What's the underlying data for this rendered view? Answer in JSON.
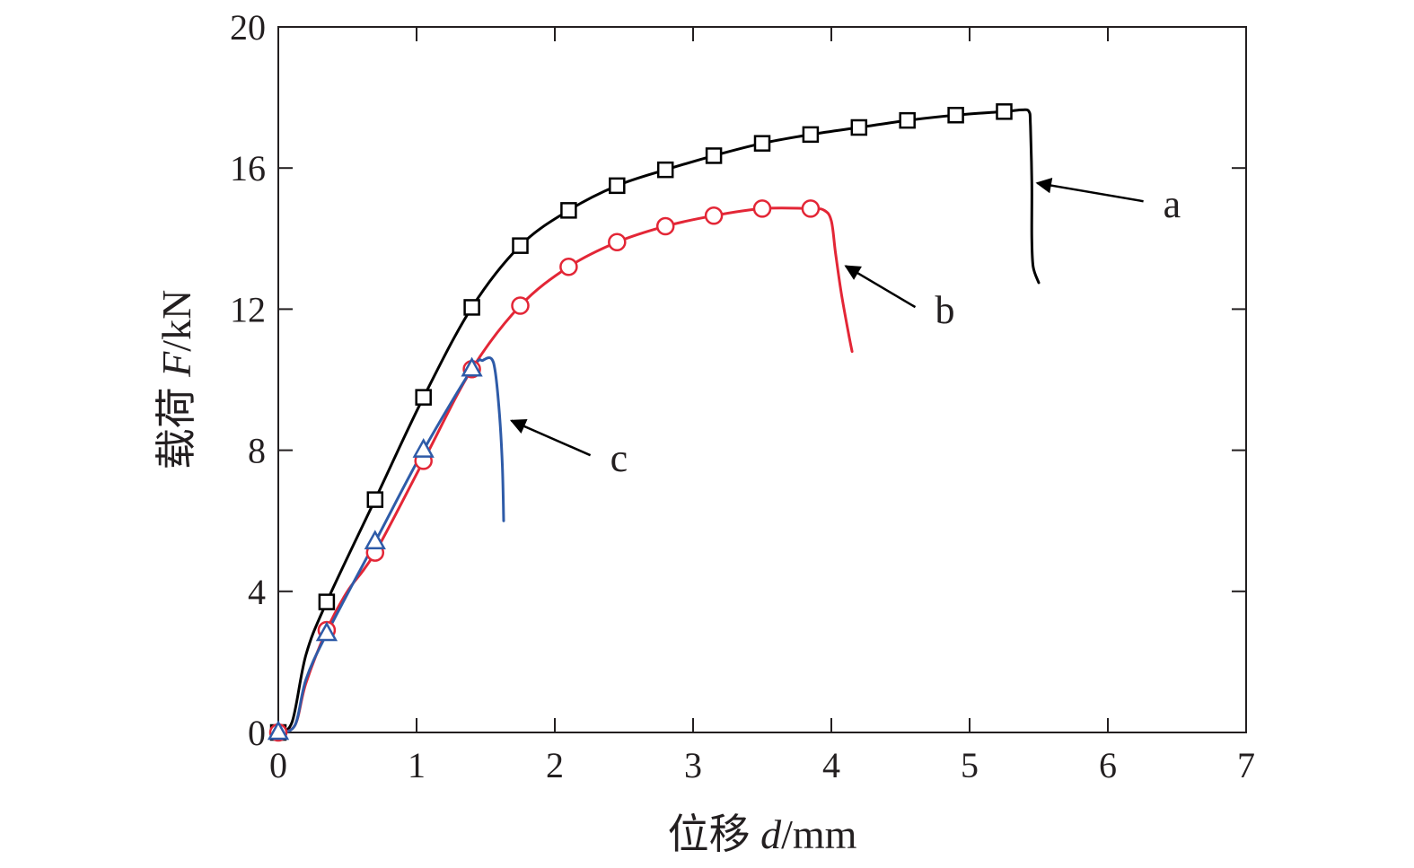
{
  "chart_data": {
    "type": "line",
    "title": "",
    "xlabel": {
      "prefix": "位移 ",
      "var": "d",
      "unit": "/mm"
    },
    "ylabel": {
      "prefix": "载荷 ",
      "var": "F",
      "unit": "/kN"
    },
    "xlim": [
      0,
      7
    ],
    "ylim": [
      0,
      20
    ],
    "xticks": [
      0,
      1,
      2,
      3,
      4,
      5,
      6,
      7
    ],
    "yticks": [
      0,
      4,
      8,
      12,
      16,
      20
    ],
    "grid": false,
    "series": [
      {
        "name": "a",
        "color": "#000000",
        "marker": "square",
        "points": [
          [
            0,
            0
          ],
          [
            0.1,
            0.3
          ],
          [
            0.2,
            2.2
          ],
          [
            0.35,
            3.7
          ],
          [
            0.7,
            6.6
          ],
          [
            1.05,
            9.5
          ],
          [
            1.4,
            12.05
          ],
          [
            1.75,
            13.8
          ],
          [
            2.1,
            14.8
          ],
          [
            2.45,
            15.5
          ],
          [
            2.8,
            15.95
          ],
          [
            3.15,
            16.35
          ],
          [
            3.5,
            16.7
          ],
          [
            3.85,
            16.95
          ],
          [
            4.2,
            17.15
          ],
          [
            4.55,
            17.35
          ],
          [
            4.9,
            17.5
          ],
          [
            5.25,
            17.6
          ],
          [
            5.38,
            17.65
          ],
          [
            5.43,
            17.6
          ],
          [
            5.44,
            17.2
          ],
          [
            5.45,
            15.6
          ],
          [
            5.45,
            14.0
          ],
          [
            5.46,
            13.2
          ],
          [
            5.5,
            12.75
          ]
        ],
        "markers": [
          [
            0,
            0
          ],
          [
            0.35,
            3.7
          ],
          [
            0.7,
            6.6
          ],
          [
            1.05,
            9.5
          ],
          [
            1.4,
            12.05
          ],
          [
            1.75,
            13.8
          ],
          [
            2.1,
            14.8
          ],
          [
            2.45,
            15.5
          ],
          [
            2.8,
            15.95
          ],
          [
            3.15,
            16.35
          ],
          [
            3.5,
            16.7
          ],
          [
            3.85,
            16.95
          ],
          [
            4.2,
            17.15
          ],
          [
            4.55,
            17.35
          ],
          [
            4.9,
            17.5
          ],
          [
            5.25,
            17.6
          ]
        ]
      },
      {
        "name": "b",
        "color": "#e32636",
        "marker": "circle",
        "points": [
          [
            0,
            0
          ],
          [
            0.12,
            0.2
          ],
          [
            0.2,
            1.4
          ],
          [
            0.35,
            2.9
          ],
          [
            0.5,
            4.0
          ],
          [
            0.7,
            5.1
          ],
          [
            1.05,
            7.7
          ],
          [
            1.4,
            10.3
          ],
          [
            1.75,
            12.1
          ],
          [
            2.1,
            13.2
          ],
          [
            2.45,
            13.9
          ],
          [
            2.8,
            14.35
          ],
          [
            3.15,
            14.65
          ],
          [
            3.5,
            14.85
          ],
          [
            3.85,
            14.85
          ],
          [
            3.95,
            14.8
          ],
          [
            4.0,
            14.5
          ],
          [
            4.03,
            13.6
          ],
          [
            4.07,
            12.5
          ],
          [
            4.12,
            11.4
          ],
          [
            4.15,
            10.8
          ]
        ],
        "markers": [
          [
            0,
            0
          ],
          [
            0.35,
            2.9
          ],
          [
            0.7,
            5.1
          ],
          [
            1.05,
            7.7
          ],
          [
            1.4,
            10.3
          ],
          [
            1.75,
            12.1
          ],
          [
            2.1,
            13.2
          ],
          [
            2.45,
            13.9
          ],
          [
            2.8,
            14.35
          ],
          [
            3.15,
            14.65
          ],
          [
            3.5,
            14.85
          ],
          [
            3.85,
            14.85
          ]
        ]
      },
      {
        "name": "c",
        "color": "#2e5ba8",
        "marker": "triangle",
        "points": [
          [
            0,
            0
          ],
          [
            0.12,
            0.2
          ],
          [
            0.2,
            1.5
          ],
          [
            0.35,
            2.8
          ],
          [
            0.7,
            5.4
          ],
          [
            1.05,
            8.0
          ],
          [
            1.4,
            10.3
          ],
          [
            1.48,
            10.55
          ],
          [
            1.54,
            10.6
          ],
          [
            1.57,
            10.2
          ],
          [
            1.6,
            9.0
          ],
          [
            1.62,
            7.6
          ],
          [
            1.63,
            6.0
          ]
        ],
        "markers": [
          [
            0,
            0
          ],
          [
            0.35,
            2.8
          ],
          [
            0.7,
            5.4
          ],
          [
            1.05,
            8.0
          ],
          [
            1.4,
            10.3
          ]
        ]
      }
    ],
    "annotations": [
      {
        "label": "a",
        "target": [
          5.45,
          15.6
        ],
        "text_at": [
          6.4,
          14.6
        ]
      },
      {
        "label": "b",
        "target": [
          4.07,
          13.3
        ],
        "text_at": [
          4.75,
          11.6
        ]
      },
      {
        "label": "c",
        "target": [
          1.65,
          8.9
        ],
        "text_at": [
          2.4,
          7.4
        ]
      }
    ]
  }
}
